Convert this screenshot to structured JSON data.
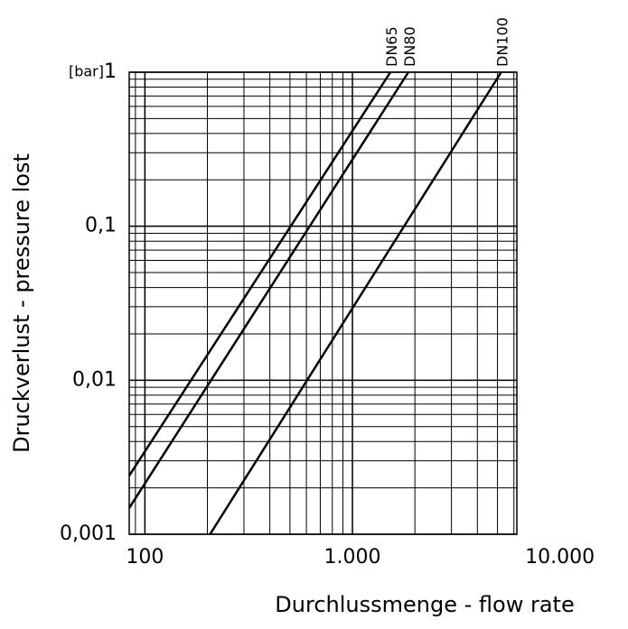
{
  "chart_data": {
    "type": "line",
    "y_label": "Druckverlust - pressure lost",
    "x_label": "Durchlussmenge - flow rate",
    "y_unit": "[bar]",
    "log_x": true,
    "log_y": true,
    "grid": true,
    "minor_grid": true,
    "xlim": [
      84,
      6200
    ],
    "ylim": [
      0.001,
      1
    ],
    "xticks": [
      100,
      {
        "value": 1000,
        "label": "1.000"
      },
      {
        "value": 10000,
        "label": "10.000"
      }
    ],
    "yticks": [
      {
        "value": 0.001,
        "label": "0,001"
      },
      {
        "value": 0.01,
        "label": "0,01"
      },
      {
        "value": 0.1,
        "label": "0,1"
      },
      1
    ],
    "series": [
      {
        "name": "DN65",
        "color": "#000000",
        "x": [
          84,
          1524
        ],
        "values": [
          0.0024,
          1
        ]
      },
      {
        "name": "DN80",
        "color": "#000000",
        "x": [
          84,
          1860
        ],
        "values": [
          0.00148,
          1
        ]
      },
      {
        "name": "DN100",
        "color": "#000000",
        "x": [
          206,
          5210
        ],
        "values": [
          0.001,
          1
        ]
      }
    ]
  }
}
